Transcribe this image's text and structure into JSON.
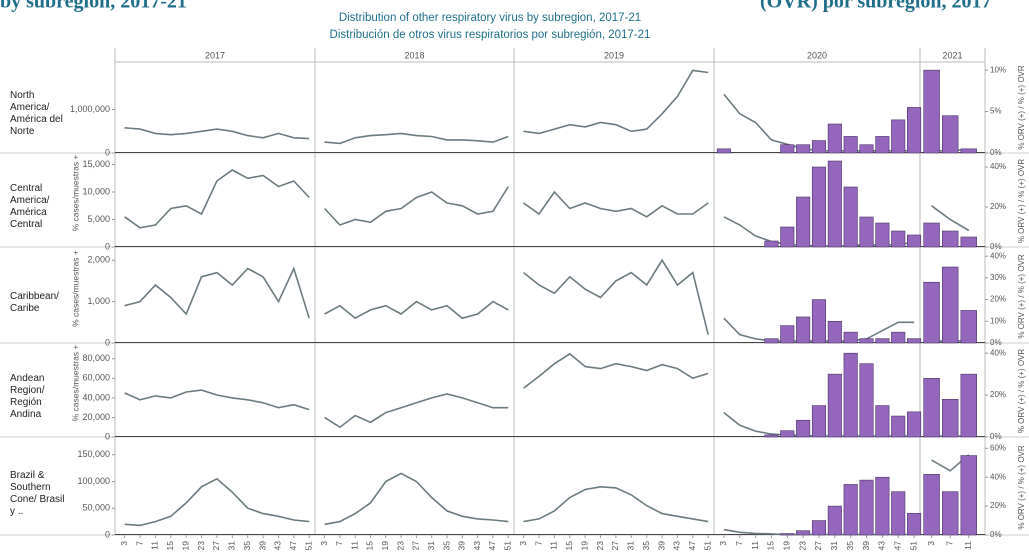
{
  "header": {
    "cropped_left": "by subregion, 2017-21",
    "cropped_right": "(OVR) por subregión, 2017",
    "title": "Distribution of other respiratory virus by subregion, 2017-21",
    "subtitle": "Distribución de otros virus respiratorios por subregión, 2017-21"
  },
  "axis": {
    "years": [
      "2017",
      "2018",
      "2019",
      "2020",
      "2021"
    ],
    "weeks": [
      3,
      7,
      11,
      15,
      19,
      23,
      27,
      31,
      35,
      39,
      43,
      47,
      51
    ]
  },
  "chart_data": [
    {
      "type": "combo",
      "title": "North America/ América del Norte",
      "y2label": "% ORV (+) / % (+) OVR",
      "ylim": [
        0,
        2000000
      ],
      "yticks": [
        0,
        {
          "value": 1000000,
          "label": "1,000,000"
        }
      ],
      "y2lim": [
        0,
        10.5
      ],
      "y2ticks": [
        {
          "value": 0,
          "label": "0%"
        },
        {
          "value": 5,
          "label": "5%"
        },
        {
          "value": 10,
          "label": "10%"
        }
      ],
      "series": [
        {
          "color": "#6b7b80",
          "values": [
            [
              580000,
              550000,
              450000,
              420000,
              450000,
              500000,
              550000,
              500000,
              400000,
              350000,
              450000,
              350000,
              330000
            ],
            [
              250000,
              220000,
              350000,
              400000,
              420000,
              450000,
              400000,
              380000,
              300000,
              300000,
              280000,
              250000,
              380000
            ],
            [
              500000,
              450000,
              550000,
              650000,
              600000,
              700000,
              650000,
              500000,
              550000,
              900000,
              1300000,
              1900000,
              1850000
            ],
            [
              1350000,
              900000,
              700000,
              300000,
              200000,
              100000,
              50000,
              50000,
              50000,
              50000,
              50000,
              50000,
              50000
            ],
            [
              50000,
              50000,
              80000
            ]
          ]
        },
        {
          "color": "#9467bd",
          "axis": "y2",
          "values": [
            [
              null,
              null,
              null,
              null,
              null,
              null,
              null,
              null,
              null,
              null,
              null,
              null,
              null
            ],
            [
              null,
              null,
              null,
              null,
              null,
              null,
              null,
              null,
              null,
              null,
              null,
              null,
              null
            ],
            [
              null,
              null,
              null,
              null,
              null,
              null,
              null,
              null,
              null,
              null,
              null,
              null,
              null
            ],
            [
              0.5,
              0,
              0,
              0,
              1,
              1,
              1.5,
              3.5,
              2,
              1,
              2,
              4,
              5.5
            ],
            [
              10,
              4.5,
              0.5
            ]
          ]
        }
      ]
    },
    {
      "type": "combo",
      "title": "Central America/ América Central",
      "ylabel": "% cases/muestras +",
      "y2label": "% ORV (+) / % (+) OVR",
      "ylim": [
        0,
        16000
      ],
      "yticks": [
        0,
        {
          "value": 5000,
          "label": "5,000"
        },
        {
          "value": 10000,
          "label": "10,000"
        },
        {
          "value": 15000,
          "label": "15,000"
        }
      ],
      "y2lim": [
        0,
        44
      ],
      "y2ticks": [
        {
          "value": 0,
          "label": "0%"
        },
        {
          "value": 20,
          "label": "20%"
        },
        {
          "value": 40,
          "label": "40%"
        }
      ],
      "series": [
        {
          "color": "#6b7b80",
          "values": [
            [
              5500,
              3500,
              4000,
              7000,
              7500,
              6000,
              12000,
              14000,
              12500,
              13000,
              11000,
              12000,
              9000
            ],
            [
              7000,
              4000,
              5000,
              4500,
              6500,
              7000,
              9000,
              10000,
              8000,
              7500,
              6000,
              6500,
              11000
            ],
            [
              8000,
              6000,
              10000,
              7000,
              8000,
              7000,
              6500,
              7000,
              5500,
              7500,
              6000,
              6000,
              8000
            ],
            [
              5500,
              4000,
              2000,
              1000,
              500,
              300,
              200,
              200,
              200,
              500,
              300,
              500,
              800
            ],
            [
              7500,
              5000,
              3000
            ]
          ]
        },
        {
          "color": "#9467bd",
          "axis": "y2",
          "values": [
            [
              null,
              null,
              null,
              null,
              null,
              null,
              null,
              null,
              null,
              null,
              null,
              null,
              null
            ],
            [
              null,
              null,
              null,
              null,
              null,
              null,
              null,
              null,
              null,
              null,
              null,
              null,
              null
            ],
            [
              null,
              null,
              null,
              null,
              null,
              null,
              null,
              null,
              null,
              null,
              null,
              null,
              null
            ],
            [
              0,
              0,
              0,
              3,
              10,
              25,
              40,
              43,
              30,
              15,
              12,
              8,
              6
            ],
            [
              12,
              8,
              5
            ]
          ]
        }
      ]
    },
    {
      "type": "combo",
      "title": "Caribbean/ Caribe",
      "ylabel": "% cases/muestras +",
      "y2label": "% ORV (+) / % (+) OVR",
      "ylim": [
        0,
        2150
      ],
      "yticks": [
        0,
        {
          "value": 1000,
          "label": "1,000"
        },
        {
          "value": 2000,
          "label": "2,000"
        }
      ],
      "y2lim": [
        0,
        41
      ],
      "y2ticks": [
        {
          "value": 0,
          "label": "0%"
        },
        {
          "value": 10,
          "label": "10%"
        },
        {
          "value": 20,
          "label": "20%"
        },
        {
          "value": 30,
          "label": "30%"
        },
        {
          "value": 40,
          "label": "40%"
        }
      ],
      "series": [
        {
          "color": "#6b7b80",
          "values": [
            [
              900,
              1000,
              1400,
              1100,
              700,
              1600,
              1700,
              1400,
              1800,
              1600,
              1000,
              1800,
              600
            ],
            [
              700,
              900,
              600,
              800,
              900,
              700,
              1000,
              800,
              900,
              600,
              700,
              1000,
              800
            ],
            [
              1700,
              1400,
              1200,
              1600,
              1300,
              1100,
              1500,
              1700,
              1400,
              2000,
              1400,
              1700,
              200
            ],
            [
              600,
              200,
              100,
              50,
              50,
              50,
              50,
              50,
              50,
              100,
              300,
              500,
              500
            ],
            [
              50,
              50,
              50
            ]
          ]
        },
        {
          "color": "#9467bd",
          "axis": "y2",
          "values": [
            [
              null,
              null,
              null,
              null,
              null,
              null,
              null,
              null,
              null,
              null,
              null,
              null,
              null
            ],
            [
              null,
              null,
              null,
              null,
              null,
              null,
              null,
              null,
              null,
              null,
              null,
              null,
              null
            ],
            [
              null,
              null,
              null,
              null,
              null,
              null,
              null,
              null,
              null,
              null,
              null,
              null,
              null
            ],
            [
              0,
              0,
              0,
              2,
              8,
              12,
              20,
              10,
              5,
              2,
              2,
              5,
              2
            ],
            [
              28,
              35,
              15
            ]
          ]
        }
      ]
    },
    {
      "type": "combo",
      "title": "Andean Region/ Región Andina",
      "ylabel": "% cases/muestras +",
      "y2label": "% ORV (+) / % (+) OVR",
      "ylim": [
        0,
        90000
      ],
      "yticks": [
        0,
        {
          "value": 20000,
          "label": "20,000"
        },
        {
          "value": 40000,
          "label": "40,000"
        },
        {
          "value": 60000,
          "label": "60,000"
        },
        {
          "value": 80000,
          "label": "80,000"
        }
      ],
      "y2lim": [
        0,
        42
      ],
      "y2ticks": [
        {
          "value": 0,
          "label": "0%"
        },
        {
          "value": 20,
          "label": "20%"
        },
        {
          "value": 40,
          "label": "40%"
        }
      ],
      "series": [
        {
          "color": "#6b7b80",
          "values": [
            [
              45000,
              38000,
              42000,
              40000,
              46000,
              48000,
              43000,
              40000,
              38000,
              35000,
              30000,
              33000,
              28000
            ],
            [
              20000,
              10000,
              22000,
              15000,
              25000,
              30000,
              35000,
              40000,
              44000,
              40000,
              35000,
              30000,
              30000
            ],
            [
              50000,
              62000,
              75000,
              85000,
              72000,
              70000,
              75000,
              72000,
              68000,
              74000,
              70000,
              60000,
              65000
            ],
            [
              25000,
              12000,
              6000,
              3000,
              2000,
              1500,
              1000,
              1000,
              1000,
              1000,
              1000,
              1000,
              1000
            ],
            [
              1000,
              1000,
              1000
            ]
          ]
        },
        {
          "color": "#9467bd",
          "axis": "y2",
          "values": [
            [
              null,
              null,
              null,
              null,
              null,
              null,
              null,
              null,
              null,
              null,
              null,
              null,
              null
            ],
            [
              null,
              null,
              null,
              null,
              null,
              null,
              null,
              null,
              null,
              null,
              null,
              null,
              null
            ],
            [
              null,
              null,
              null,
              null,
              null,
              null,
              null,
              null,
              null,
              null,
              null,
              null,
              null
            ],
            [
              0,
              0,
              0,
              1,
              3,
              8,
              15,
              30,
              40,
              35,
              15,
              10,
              12
            ],
            [
              28,
              18,
              30
            ]
          ]
        }
      ]
    },
    {
      "type": "combo",
      "title": "Brazil & Southern Cone/ Brasil y ..",
      "y2label": "% ORV (+) / % (+) OVR",
      "ylim": [
        0,
        170000
      ],
      "yticks": [
        0,
        {
          "value": 50000,
          "label": "50,000"
        },
        {
          "value": 100000,
          "label": "100,000"
        },
        {
          "value": 150000,
          "label": "150,000"
        }
      ],
      "y2lim": [
        0,
        63
      ],
      "y2ticks": [
        {
          "value": 0,
          "label": "0%"
        },
        {
          "value": 20,
          "label": "20%"
        },
        {
          "value": 40,
          "label": "40%"
        },
        {
          "value": 60,
          "label": "60%"
        }
      ],
      "series": [
        {
          "color": "#6b7b80",
          "values": [
            [
              20000,
              18000,
              25000,
              35000,
              60000,
              90000,
              105000,
              80000,
              50000,
              40000,
              35000,
              28000,
              25000
            ],
            [
              20000,
              25000,
              40000,
              60000,
              100000,
              115000,
              100000,
              70000,
              45000,
              35000,
              30000,
              28000,
              25000
            ],
            [
              25000,
              30000,
              45000,
              70000,
              85000,
              90000,
              88000,
              75000,
              55000,
              40000,
              35000,
              30000,
              25000
            ],
            [
              10000,
              5000,
              3000,
              2000,
              1000,
              1000,
              1000,
              1000,
              1000,
              1000,
              1000,
              1000,
              1000
            ],
            [
              140000,
              120000,
              150000
            ]
          ]
        },
        {
          "color": "#9467bd",
          "axis": "y2",
          "values": [
            [
              null,
              null,
              null,
              null,
              null,
              null,
              null,
              null,
              null,
              null,
              null,
              null,
              null
            ],
            [
              null,
              null,
              null,
              null,
              null,
              null,
              null,
              null,
              null,
              null,
              null,
              null,
              null
            ],
            [
              null,
              null,
              null,
              null,
              null,
              null,
              null,
              null,
              null,
              null,
              null,
              null,
              null
            ],
            [
              0,
              0,
              0,
              0,
              1,
              3,
              10,
              20,
              35,
              38,
              40,
              30,
              15
            ],
            [
              42,
              30,
              55
            ]
          ]
        }
      ]
    }
  ]
}
